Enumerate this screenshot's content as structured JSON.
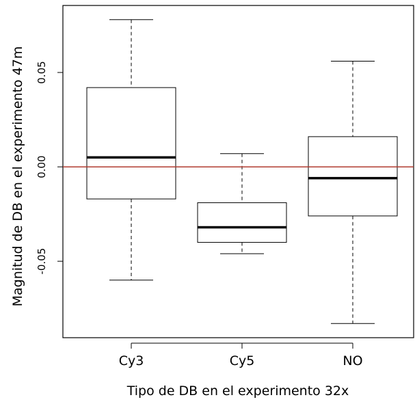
{
  "chart_data": {
    "type": "boxplot",
    "xlabel": "Tipo de DB en el experimento 32x",
    "ylabel": "Magnitud de DB en el experimento 47m",
    "categories": [
      "Cy3",
      "Cy5",
      "NO"
    ],
    "boxes": [
      {
        "category": "Cy3",
        "whisker_low": -0.06,
        "q1": -0.017,
        "median": 0.005,
        "q3": 0.042,
        "whisker_high": 0.078
      },
      {
        "category": "Cy5",
        "whisker_low": -0.046,
        "q1": -0.04,
        "median": -0.032,
        "q3": -0.019,
        "whisker_high": 0.007
      },
      {
        "category": "NO",
        "whisker_low": -0.083,
        "q1": -0.026,
        "median": -0.006,
        "q3": 0.016,
        "whisker_high": 0.056
      }
    ],
    "y_ticks": [
      -0.05,
      0.0,
      0.05
    ],
    "y_tick_labels": [
      "-0.05",
      "0.00",
      "0.05"
    ],
    "ylim": [
      -0.0905,
      0.0855
    ],
    "reference_line": {
      "y": 0,
      "color": "#b03a2e"
    },
    "grid": false,
    "legend": "none"
  }
}
